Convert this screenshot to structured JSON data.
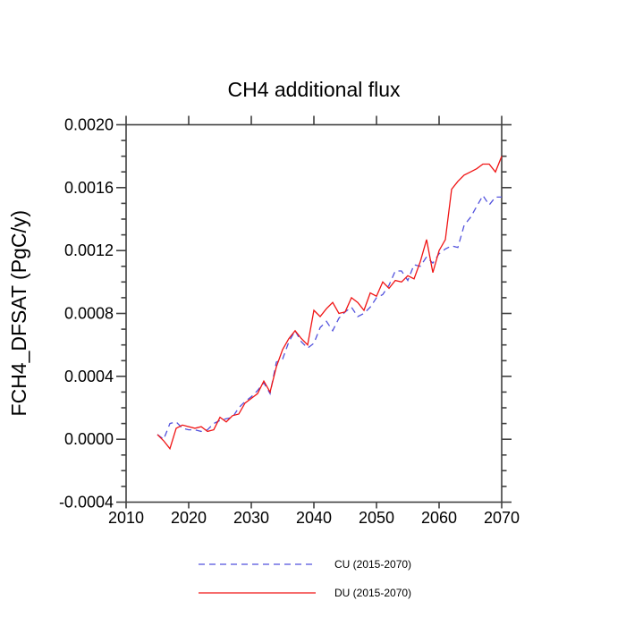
{
  "chart_data": {
    "type": "line",
    "title": "CH4 additional flux",
    "xlabel": "",
    "ylabel": "FCH4_DFSAT (PgC/y)",
    "x_range": [
      2010,
      2070
    ],
    "y_range": [
      -0.0004,
      0.002
    ],
    "x_ticks": [
      2010,
      2020,
      2030,
      2040,
      2050,
      2060,
      2070
    ],
    "x_tick_labels": [
      "2010",
      "2020",
      "2030",
      "2040",
      "2050",
      "2060",
      "2070"
    ],
    "y_ticks": [
      -0.0004,
      0.0,
      0.0004,
      0.0008,
      0.0012,
      0.0016,
      0.002
    ],
    "y_tick_labels": [
      "-0.0004",
      "0.0000",
      "0.0004",
      "0.0008",
      "0.0012",
      "0.0016",
      "0.0020"
    ],
    "y_minor_step": 0.0001,
    "grid": false,
    "legend_position": "bottom-center",
    "axis_color": "#404040",
    "text_color": "#000000",
    "background": "#ffffff",
    "x": [
      2015,
      2016,
      2017,
      2018,
      2019,
      2020,
      2021,
      2022,
      2023,
      2024,
      2025,
      2026,
      2027,
      2028,
      2029,
      2030,
      2031,
      2032,
      2033,
      2034,
      2035,
      2036,
      2037,
      2038,
      2039,
      2040,
      2041,
      2042,
      2043,
      2044,
      2045,
      2046,
      2047,
      2048,
      2049,
      2050,
      2051,
      2052,
      2053,
      2054,
      2055,
      2056,
      2057,
      2058,
      2059,
      2060,
      2061,
      2062,
      2063,
      2064,
      2065,
      2066,
      2067,
      2068,
      2069,
      2070
    ],
    "series": [
      {
        "name": "CU (2015-2070)",
        "color": "#5252dd",
        "line_style": "dashed",
        "values": [
          3e-05,
          0.0,
          0.0001,
          0.00011,
          7e-05,
          6e-05,
          6e-05,
          5e-05,
          6e-05,
          0.0001,
          0.00012,
          0.00013,
          0.00014,
          0.0002,
          0.00024,
          0.00027,
          0.00031,
          0.00036,
          0.00029,
          0.00049,
          0.00051,
          0.00062,
          0.00069,
          0.00062,
          0.00058,
          0.00061,
          0.00071,
          0.00075,
          0.00069,
          0.00077,
          0.00081,
          0.00084,
          0.00078,
          0.0008,
          0.00084,
          0.0009,
          0.00092,
          0.00098,
          0.00107,
          0.00107,
          0.00101,
          0.00111,
          0.0011,
          0.00116,
          0.00112,
          0.00118,
          0.00121,
          0.00123,
          0.00122,
          0.00136,
          0.00141,
          0.00148,
          0.00155,
          0.00149,
          0.00154,
          0.00154
        ]
      },
      {
        "name": "DU (2015-2070)",
        "color": "#f01414",
        "line_style": "solid",
        "values": [
          3e-05,
          -1e-05,
          -6e-05,
          7e-05,
          9e-05,
          8e-05,
          7e-05,
          8e-05,
          5e-05,
          6e-05,
          0.00014,
          0.00011,
          0.00015,
          0.00016,
          0.00023,
          0.00026,
          0.00029,
          0.00037,
          0.0003,
          0.00046,
          0.00057,
          0.00064,
          0.00069,
          0.00064,
          0.0006,
          0.00082,
          0.00078,
          0.00083,
          0.00087,
          0.0008,
          0.00081,
          0.0009,
          0.00087,
          0.00082,
          0.00093,
          0.00091,
          0.001,
          0.00096,
          0.00101,
          0.001,
          0.00104,
          0.00102,
          0.00113,
          0.00127,
          0.00106,
          0.0012,
          0.00127,
          0.00159,
          0.00164,
          0.00168,
          0.0017,
          0.00172,
          0.00175,
          0.00175,
          0.0017,
          0.0018
        ]
      }
    ]
  }
}
